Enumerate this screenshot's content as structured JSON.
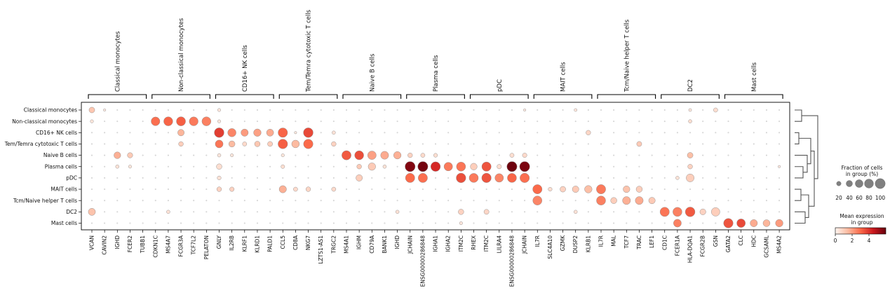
{
  "chart_data": {
    "type": "dotplot",
    "title": "",
    "row_labels": [
      "Classical monocytes",
      "Non-classical monocytes",
      "CD16+ NK cells",
      "Tem/Temra cytotoxic T cells",
      "Naive B cells",
      "Plasma cells",
      "pDC",
      "MAIT cells",
      "Tcm/Naive helper T cells",
      "DC2",
      "Mast cells"
    ],
    "column_labels": [
      "VCAN",
      "CAVIN2",
      "IGHD",
      "FCER2",
      "TUBB1",
      "CDKN1C",
      "MS4A7",
      "FCGR3A",
      "TCF7L2",
      "PELATON",
      "GNLY",
      "IL2RB",
      "KLRF1",
      "KLRD1",
      "PALD1",
      "CCL5",
      "CD8A",
      "NKG7",
      "LZTS1-AS1",
      "TRGC2",
      "MS4A1",
      "IGHM",
      "CD79A",
      "BANK1",
      "IGHD",
      "JCHAIN",
      "ENSG00000286848",
      "IGHA1",
      "IGHA2",
      "ITM2C",
      "RHEX",
      "ITM2C",
      "LILRA4",
      "ENSG00000286848",
      "JCHAIN",
      "IL7R",
      "SLC4A10",
      "GZMK",
      "DUSP2",
      "KLRB1",
      "IL7R",
      "MAL",
      "TCF7",
      "TRAC",
      "LEF1",
      "CD1C",
      "FCER1A",
      "HLA-DQA1",
      "FCGR2B",
      "GSN",
      "GATA2",
      "CLC",
      "HDC",
      "GCSAML",
      "MS4A2"
    ],
    "gene_groups": [
      {
        "name": "Classical monocytes",
        "start": 0,
        "end": 4
      },
      {
        "name": "Non-classical monocytes",
        "start": 5,
        "end": 9
      },
      {
        "name": "CD16+ NK cells",
        "start": 10,
        "end": 14
      },
      {
        "name": "Tem/Temra cytotoxic T cells",
        "start": 15,
        "end": 19
      },
      {
        "name": "Naive B cells",
        "start": 20,
        "end": 24
      },
      {
        "name": "Plasma cells",
        "start": 25,
        "end": 29
      },
      {
        "name": "pDC",
        "start": 30,
        "end": 34
      },
      {
        "name": "MAIT cells",
        "start": 35,
        "end": 39
      },
      {
        "name": "Tcm/Naive helper T cells",
        "start": 40,
        "end": 44
      },
      {
        "name": "DC2",
        "start": 45,
        "end": 49
      },
      {
        "name": "Mast cells",
        "start": 50,
        "end": 54
      }
    ],
    "dots": [
      {
        "row": 0,
        "col": 0,
        "frac": 32,
        "expr": 1.2
      },
      {
        "row": 0,
        "col": 1,
        "frac": 6,
        "expr": 0.3
      },
      {
        "row": 0,
        "col": 10,
        "frac": 10,
        "expr": 0.4
      },
      {
        "row": 0,
        "col": 34,
        "frac": 6,
        "expr": 0.3
      },
      {
        "row": 0,
        "col": 38,
        "frac": 8,
        "expr": 0.4
      },
      {
        "row": 0,
        "col": 47,
        "frac": 8,
        "expr": 0.4
      },
      {
        "row": 0,
        "col": 49,
        "frac": 18,
        "expr": 0.6
      },
      {
        "row": 1,
        "col": 0,
        "frac": 10,
        "expr": 0.4
      },
      {
        "row": 1,
        "col": 5,
        "frac": 75,
        "expr": 2.9
      },
      {
        "row": 1,
        "col": 6,
        "frac": 80,
        "expr": 3.1
      },
      {
        "row": 1,
        "col": 7,
        "frac": 82,
        "expr": 3.2
      },
      {
        "row": 1,
        "col": 8,
        "frac": 78,
        "expr": 2.7
      },
      {
        "row": 1,
        "col": 9,
        "frac": 80,
        "expr": 2.6
      },
      {
        "row": 1,
        "col": 10,
        "frac": 10,
        "expr": 0.4
      },
      {
        "row": 1,
        "col": 47,
        "frac": 12,
        "expr": 0.6
      },
      {
        "row": 2,
        "col": 7,
        "frac": 42,
        "expr": 1.6
      },
      {
        "row": 2,
        "col": 10,
        "frac": 92,
        "expr": 3.8
      },
      {
        "row": 2,
        "col": 11,
        "frac": 68,
        "expr": 2.5
      },
      {
        "row": 2,
        "col": 12,
        "frac": 52,
        "expr": 2.1
      },
      {
        "row": 2,
        "col": 13,
        "frac": 55,
        "expr": 2.0
      },
      {
        "row": 2,
        "col": 14,
        "frac": 50,
        "expr": 1.8
      },
      {
        "row": 2,
        "col": 15,
        "frac": 88,
        "expr": 3.1
      },
      {
        "row": 2,
        "col": 16,
        "frac": 6,
        "expr": 0.3
      },
      {
        "row": 2,
        "col": 17,
        "frac": 92,
        "expr": 3.6
      },
      {
        "row": 2,
        "col": 19,
        "frac": 12,
        "expr": 0.5
      },
      {
        "row": 2,
        "col": 39,
        "frac": 22,
        "expr": 0.8
      },
      {
        "row": 3,
        "col": 7,
        "frac": 22,
        "expr": 1.0
      },
      {
        "row": 3,
        "col": 10,
        "frac": 60,
        "expr": 2.8
      },
      {
        "row": 3,
        "col": 11,
        "frac": 38,
        "expr": 1.5
      },
      {
        "row": 3,
        "col": 12,
        "frac": 18,
        "expr": 0.7
      },
      {
        "row": 3,
        "col": 13,
        "frac": 30,
        "expr": 1.2
      },
      {
        "row": 3,
        "col": 14,
        "frac": 25,
        "expr": 1.0
      },
      {
        "row": 3,
        "col": 15,
        "frac": 90,
        "expr": 3.2
      },
      {
        "row": 3,
        "col": 16,
        "frac": 58,
        "expr": 1.5
      },
      {
        "row": 3,
        "col": 17,
        "frac": 88,
        "expr": 3.0
      },
      {
        "row": 3,
        "col": 19,
        "frac": 22,
        "expr": 0.9
      },
      {
        "row": 3,
        "col": 43,
        "frac": 25,
        "expr": 1.1
      },
      {
        "row": 4,
        "col": 2,
        "frac": 45,
        "expr": 1.7
      },
      {
        "row": 4,
        "col": 3,
        "frac": 28,
        "expr": 1.1
      },
      {
        "row": 4,
        "col": 10,
        "frac": 12,
        "expr": 0.4
      },
      {
        "row": 4,
        "col": 11,
        "frac": 10,
        "expr": 0.4
      },
      {
        "row": 4,
        "col": 15,
        "frac": 10,
        "expr": 0.4
      },
      {
        "row": 4,
        "col": 20,
        "frac": 85,
        "expr": 3.3
      },
      {
        "row": 4,
        "col": 21,
        "frac": 80,
        "expr": 3.5
      },
      {
        "row": 4,
        "col": 22,
        "frac": 72,
        "expr": 2.0
      },
      {
        "row": 4,
        "col": 23,
        "frac": 62,
        "expr": 1.8
      },
      {
        "row": 4,
        "col": 24,
        "frac": 55,
        "expr": 1.7
      },
      {
        "row": 4,
        "col": 25,
        "frac": 22,
        "expr": 0.9
      },
      {
        "row": 4,
        "col": 26,
        "frac": 18,
        "expr": 0.7
      },
      {
        "row": 4,
        "col": 27,
        "frac": 15,
        "expr": 0.6
      },
      {
        "row": 4,
        "col": 33,
        "frac": 18,
        "expr": 0.6
      },
      {
        "row": 4,
        "col": 34,
        "frac": 20,
        "expr": 0.7
      },
      {
        "row": 4,
        "col": 47,
        "frac": 32,
        "expr": 1.4
      },
      {
        "row": 5,
        "col": 2,
        "frac": 12,
        "expr": 0.5
      },
      {
        "row": 5,
        "col": 3,
        "frac": 10,
        "expr": 0.4
      },
      {
        "row": 5,
        "col": 10,
        "frac": 30,
        "expr": 0.6
      },
      {
        "row": 5,
        "col": 15,
        "frac": 14,
        "expr": 0.6
      },
      {
        "row": 5,
        "col": 21,
        "frac": 22,
        "expr": 1.1
      },
      {
        "row": 5,
        "col": 22,
        "frac": 55,
        "expr": 1.1
      },
      {
        "row": 5,
        "col": 23,
        "frac": 12,
        "expr": 0.5
      },
      {
        "row": 5,
        "col": 25,
        "frac": 100,
        "expr": 5.6
      },
      {
        "row": 5,
        "col": 26,
        "frac": 100,
        "expr": 5.8
      },
      {
        "row": 5,
        "col": 27,
        "frac": 90,
        "expr": 4.2
      },
      {
        "row": 5,
        "col": 28,
        "frac": 72,
        "expr": 2.7
      },
      {
        "row": 5,
        "col": 29,
        "frac": 82,
        "expr": 2.8
      },
      {
        "row": 5,
        "col": 30,
        "frac": 45,
        "expr": 1.0
      },
      {
        "row": 5,
        "col": 31,
        "frac": 85,
        "expr": 3.4
      },
      {
        "row": 5,
        "col": 32,
        "frac": 20,
        "expr": 0.6
      },
      {
        "row": 5,
        "col": 33,
        "frac": 100,
        "expr": 5.9
      },
      {
        "row": 5,
        "col": 34,
        "frac": 100,
        "expr": 5.7
      },
      {
        "row": 5,
        "col": 47,
        "frac": 22,
        "expr": 0.9
      },
      {
        "row": 5,
        "col": 54,
        "frac": 6,
        "expr": 0.3
      },
      {
        "row": 6,
        "col": 10,
        "frac": 15,
        "expr": 0.5
      },
      {
        "row": 6,
        "col": 21,
        "frac": 42,
        "expr": 1.0
      },
      {
        "row": 6,
        "col": 25,
        "frac": 85,
        "expr": 3.0
      },
      {
        "row": 6,
        "col": 26,
        "frac": 85,
        "expr": 2.9
      },
      {
        "row": 6,
        "col": 29,
        "frac": 90,
        "expr": 3.5
      },
      {
        "row": 6,
        "col": 30,
        "frac": 82,
        "expr": 2.7
      },
      {
        "row": 6,
        "col": 31,
        "frac": 88,
        "expr": 3.4
      },
      {
        "row": 6,
        "col": 32,
        "frac": 72,
        "expr": 2.5
      },
      {
        "row": 6,
        "col": 33,
        "frac": 82,
        "expr": 3.1
      },
      {
        "row": 6,
        "col": 34,
        "frac": 88,
        "expr": 2.9
      },
      {
        "row": 6,
        "col": 46,
        "frac": 12,
        "expr": 0.5
      },
      {
        "row": 6,
        "col": 47,
        "frac": 62,
        "expr": 1.0
      },
      {
        "row": 7,
        "col": 10,
        "frac": 22,
        "expr": 0.9
      },
      {
        "row": 7,
        "col": 11,
        "frac": 20,
        "expr": 0.9
      },
      {
        "row": 7,
        "col": 15,
        "frac": 52,
        "expr": 1.7
      },
      {
        "row": 7,
        "col": 16,
        "frac": 18,
        "expr": 0.7
      },
      {
        "row": 7,
        "col": 17,
        "frac": 22,
        "expr": 0.8
      },
      {
        "row": 7,
        "col": 19,
        "frac": 18,
        "expr": 0.7
      },
      {
        "row": 7,
        "col": 35,
        "frac": 85,
        "expr": 3.0
      },
      {
        "row": 7,
        "col": 36,
        "frac": 15,
        "expr": 0.6
      },
      {
        "row": 7,
        "col": 37,
        "frac": 32,
        "expr": 0.9
      },
      {
        "row": 7,
        "col": 38,
        "frac": 42,
        "expr": 1.1
      },
      {
        "row": 7,
        "col": 39,
        "frac": 55,
        "expr": 1.4
      },
      {
        "row": 7,
        "col": 40,
        "frac": 85,
        "expr": 2.7
      },
      {
        "row": 7,
        "col": 42,
        "frac": 45,
        "expr": 1.3
      },
      {
        "row": 7,
        "col": 43,
        "frac": 38,
        "expr": 1.0
      },
      {
        "row": 8,
        "col": 35,
        "frac": 82,
        "expr": 2.5
      },
      {
        "row": 8,
        "col": 40,
        "frac": 82,
        "expr": 2.6
      },
      {
        "row": 8,
        "col": 41,
        "frac": 38,
        "expr": 1.0
      },
      {
        "row": 8,
        "col": 42,
        "frac": 62,
        "expr": 1.7
      },
      {
        "row": 8,
        "col": 43,
        "frac": 62,
        "expr": 1.8
      },
      {
        "row": 8,
        "col": 44,
        "frac": 42,
        "expr": 1.1
      },
      {
        "row": 9,
        "col": 0,
        "frac": 50,
        "expr": 1.3
      },
      {
        "row": 9,
        "col": 6,
        "frac": 12,
        "expr": 0.5
      },
      {
        "row": 9,
        "col": 24,
        "frac": 12,
        "expr": 0.5
      },
      {
        "row": 9,
        "col": 29,
        "frac": 30,
        "expr": 0.9
      },
      {
        "row": 9,
        "col": 31,
        "frac": 25,
        "expr": 0.8
      },
      {
        "row": 9,
        "col": 38,
        "frac": 12,
        "expr": 0.5
      },
      {
        "row": 9,
        "col": 45,
        "frac": 85,
        "expr": 2.8
      },
      {
        "row": 9,
        "col": 46,
        "frac": 82,
        "expr": 2.6
      },
      {
        "row": 9,
        "col": 47,
        "frac": 92,
        "expr": 3.3
      },
      {
        "row": 9,
        "col": 48,
        "frac": 35,
        "expr": 0.9
      },
      {
        "row": 9,
        "col": 49,
        "frac": 72,
        "expr": 1.0
      },
      {
        "row": 10,
        "col": 29,
        "frac": 10,
        "expr": 0.4
      },
      {
        "row": 10,
        "col": 46,
        "frac": 60,
        "expr": 2.6
      },
      {
        "row": 10,
        "col": 50,
        "frac": 88,
        "expr": 3.4
      },
      {
        "row": 10,
        "col": 51,
        "frac": 72,
        "expr": 3.6
      },
      {
        "row": 10,
        "col": 52,
        "frac": 52,
        "expr": 1.8
      },
      {
        "row": 10,
        "col": 53,
        "frac": 48,
        "expr": 1.6
      },
      {
        "row": 10,
        "col": 54,
        "frac": 55,
        "expr": 2.1
      }
    ],
    "size_legend": {
      "title_line1": "Fraction of cells",
      "title_line2": "in group (%)",
      "values": [
        20,
        40,
        60,
        80,
        100
      ],
      "labels": [
        "20",
        "40",
        "60",
        "80",
        "100"
      ]
    },
    "color_legend": {
      "title_line1": "Mean expression",
      "title_line2": "in group",
      "vmin": 0,
      "vmax": 6,
      "ticks": [
        0,
        2,
        4
      ],
      "tick_labels": [
        "0",
        "2",
        "4"
      ]
    },
    "dendrogram_order": [
      "Classical monocytes",
      "Non-classical monocytes",
      "CD16+ NK cells",
      "Tem/Temra cytotoxic T cells",
      "Naive B cells",
      "Plasma cells",
      "pDC",
      "MAIT cells",
      "Tcm/Naive helper T cells",
      "DC2",
      "Mast cells"
    ],
    "colors": {
      "cmap_start": "#fff5f0",
      "cmap_mid1": "#fcbba1",
      "cmap_mid2": "#fb6a4a",
      "cmap_mid3": "#cb181d",
      "cmap_end": "#67000d",
      "frame": "#000000",
      "dendro": "#555555",
      "legend_dot": "#808080"
    }
  }
}
